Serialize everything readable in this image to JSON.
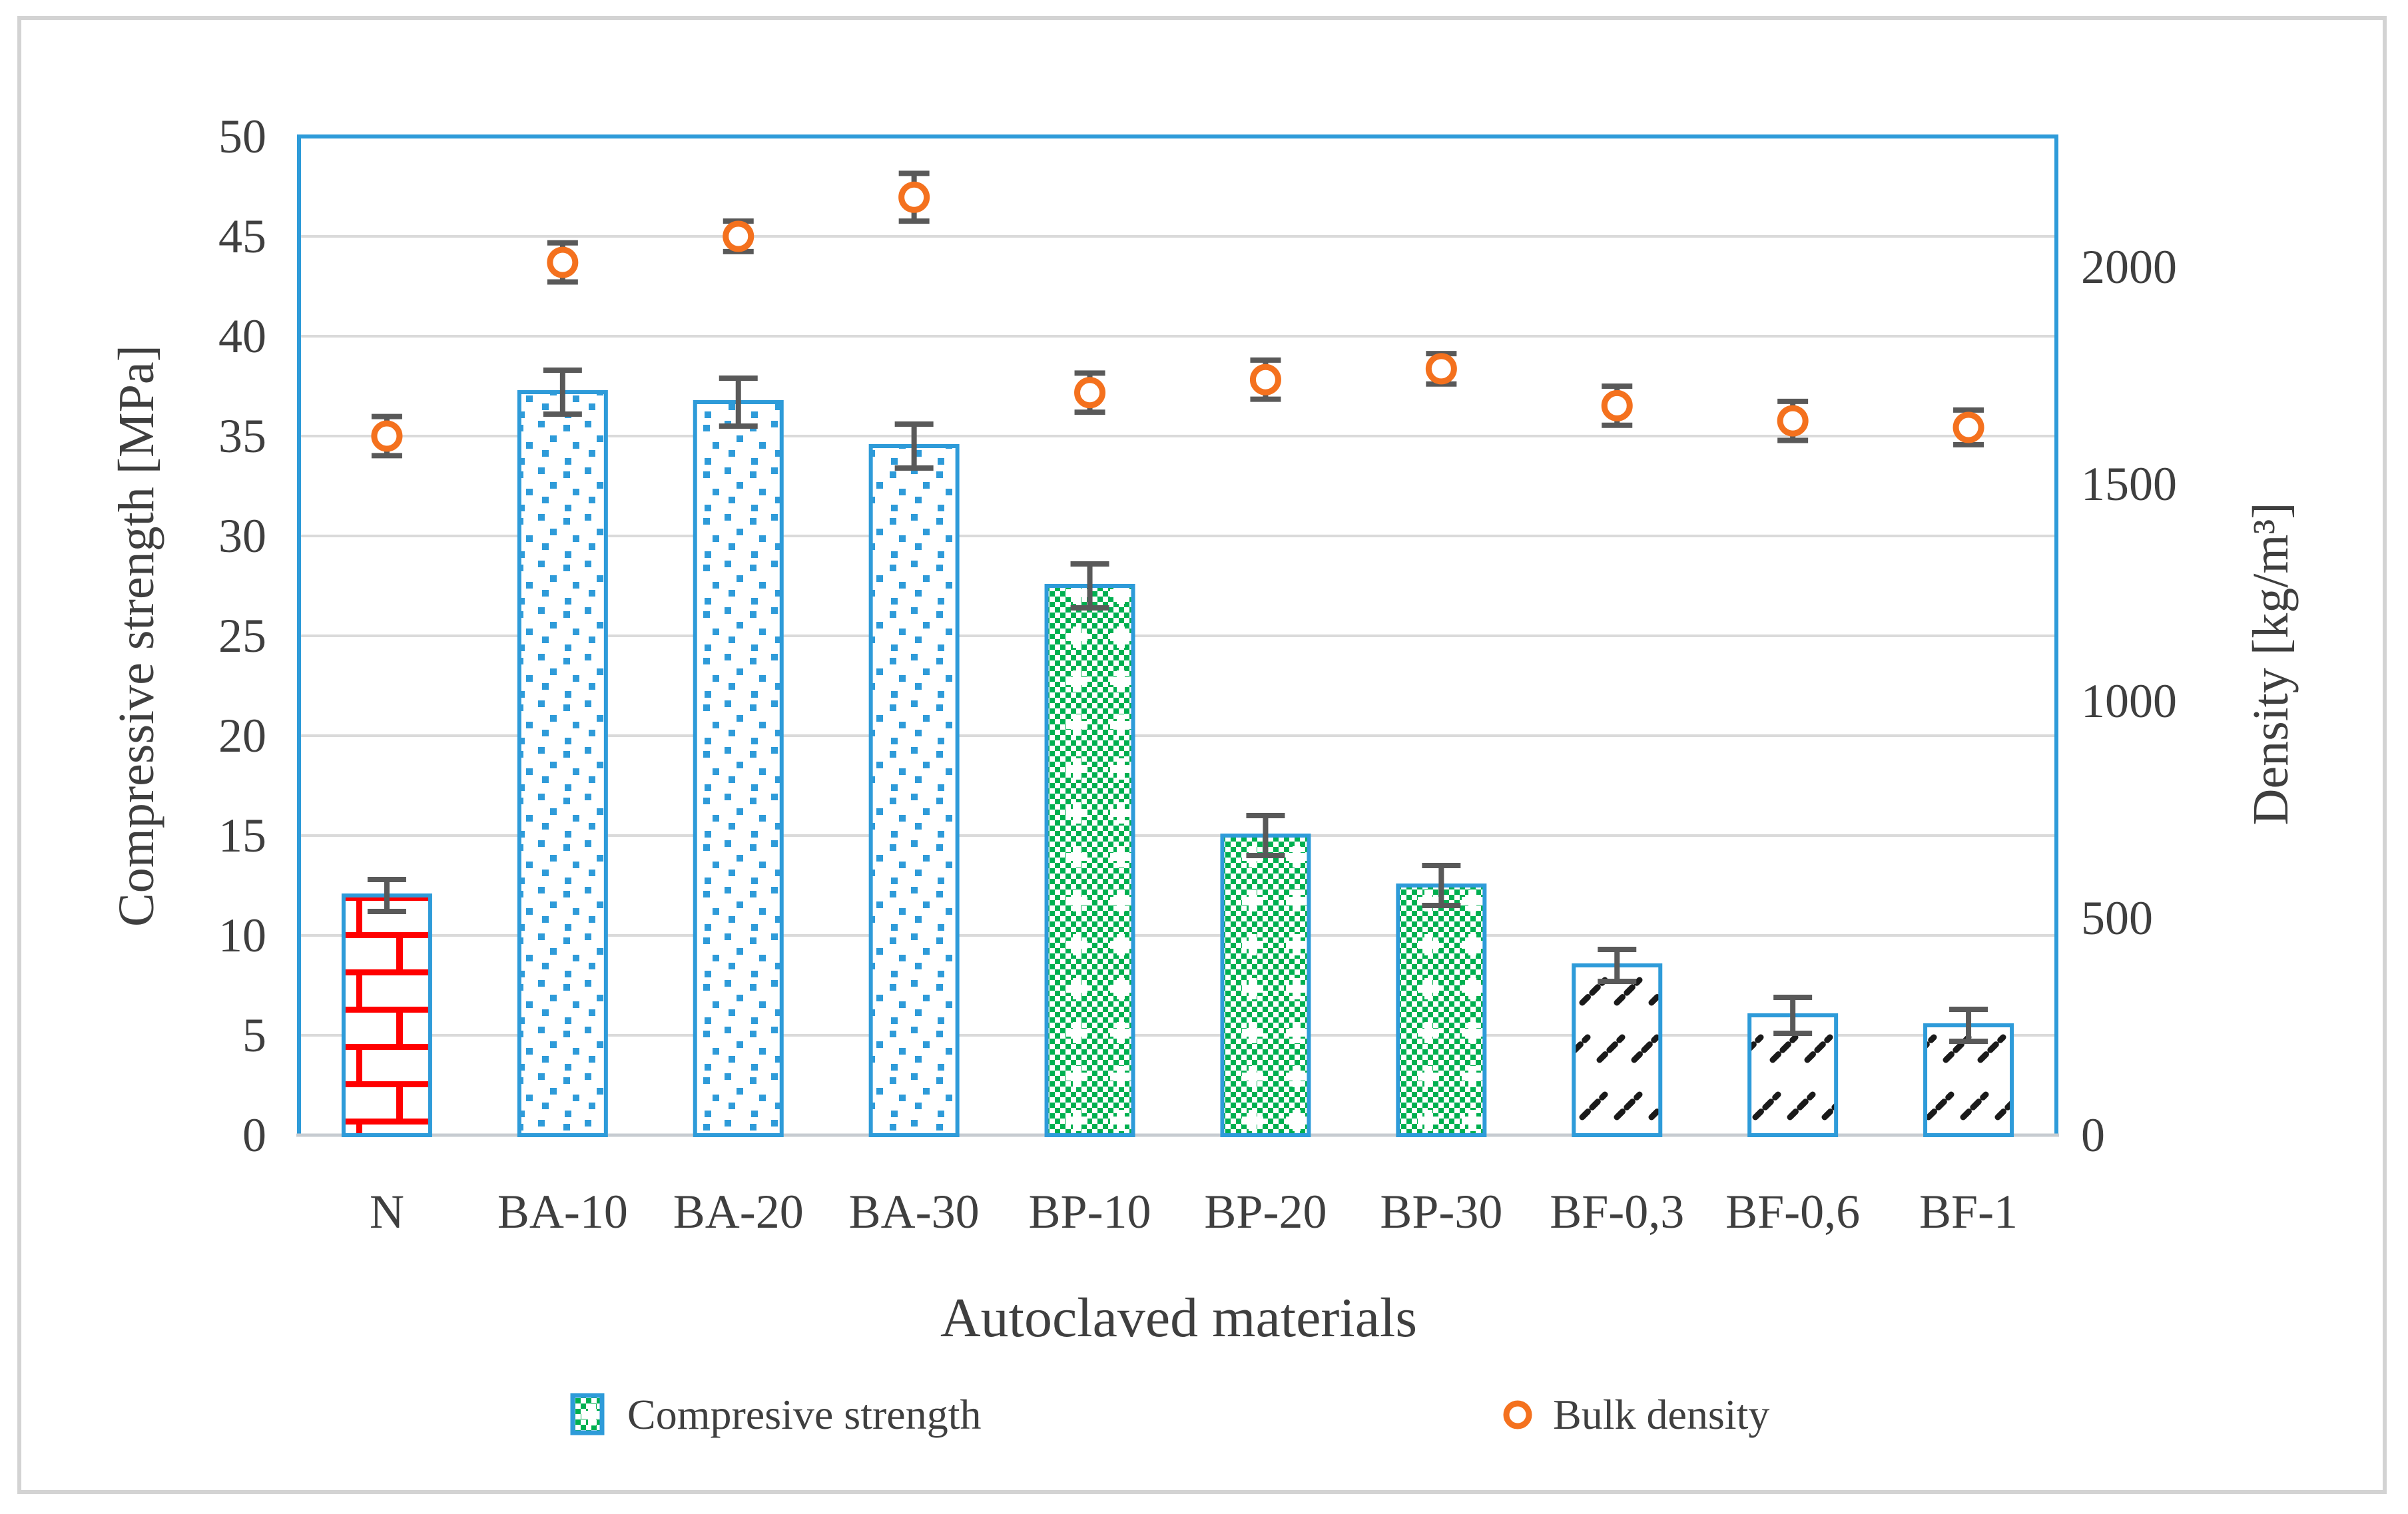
{
  "figure": {
    "background": "#ffffff",
    "border_color": "#d3d3d3"
  },
  "colors": {
    "bar_border_blue": "#2E9BD9",
    "brick_red": "#FF0000",
    "checker_green": "#00B050",
    "diag_black": "#1a1a1a",
    "marker_orange": "#F4711E",
    "error_bar_gray": "#595959",
    "gridline_gray": "#DADADA",
    "axis_line_gray": "#C7CCD1",
    "text_gray": "#3f3f3f"
  },
  "chart_data": {
    "type": "bar",
    "subtype": "bar-with-secondary-scatter",
    "categories": [
      "N",
      "BA-10",
      "BA-20",
      "BA-30",
      "BP-10",
      "BP-20",
      "BP-30",
      "BF-0,3",
      "BF-0,6",
      "BF-1"
    ],
    "series": [
      {
        "name": "Compresive strength",
        "type": "bar",
        "axis": "left",
        "values": [
          12,
          37.2,
          36.7,
          34.5,
          27.5,
          15,
          12.5,
          8.5,
          6,
          5.5
        ],
        "errors": [
          0.8,
          1.1,
          1.2,
          1.1,
          1.1,
          1.0,
          1.0,
          0.8,
          0.9,
          0.8
        ],
        "fill_patterns": [
          "brick",
          "dots",
          "dots",
          "dots",
          "checker",
          "checker",
          "checker",
          "diag",
          "diag",
          "diag"
        ]
      },
      {
        "name": "Bulk density",
        "type": "scatter",
        "axis": "right",
        "marker": "open-circle",
        "values": [
          1610,
          2010,
          2070,
          2160,
          1710,
          1740,
          1765,
          1680,
          1645,
          1630
        ],
        "errors": [
          45,
          45,
          35,
          55,
          45,
          45,
          35,
          45,
          45,
          40
        ]
      }
    ],
    "left_axis": {
      "label": "Compressive strength [MPa]",
      "min": 0,
      "max": 50,
      "tick_step": 5,
      "ticks": [
        0,
        5,
        10,
        15,
        20,
        25,
        30,
        35,
        40,
        45,
        50
      ]
    },
    "right_axis": {
      "label": "Density [kg/m³]",
      "min": 0,
      "max": 2300,
      "ticks": [
        0,
        500,
        1000,
        1500,
        2000
      ]
    },
    "xlabel": "Autoclaved materials",
    "grid": "horizontal",
    "legend_position": "bottom"
  }
}
